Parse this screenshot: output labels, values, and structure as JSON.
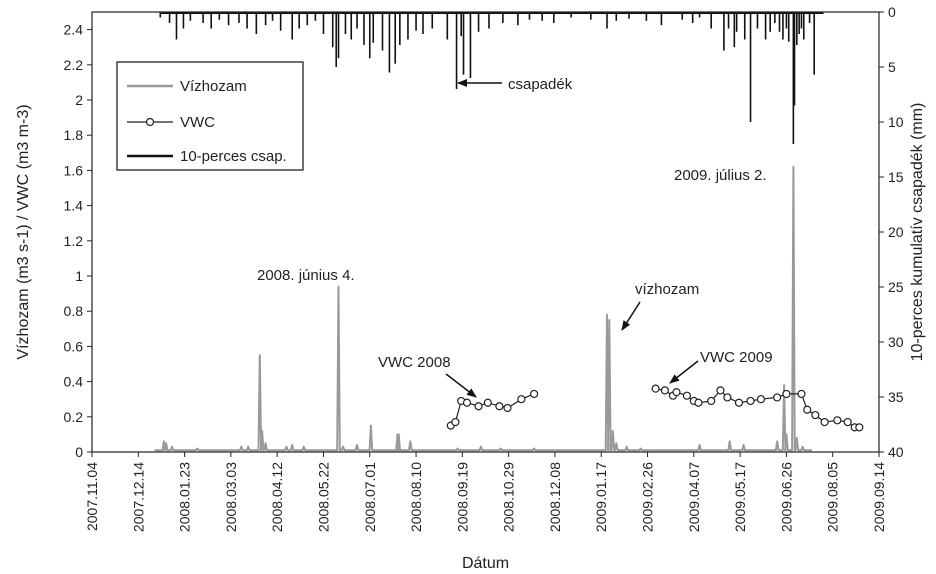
{
  "chart_data": {
    "type": "line",
    "xlabel": "Dátum",
    "ylabel_left": "Vízhozam (m3 s-1) / VWC (m3 m-3)",
    "ylabel_right": "10-perces kumulatív csapadék (mm)",
    "xlim": [
      "2007.11.04",
      "2009.09.14"
    ],
    "ylim_left": [
      0,
      2.5
    ],
    "ylim_right": [
      0,
      40
    ],
    "right_axis_inverted": true,
    "x_tick_labels": [
      "2007.11.04",
      "2007.12.14",
      "2008.01.23",
      "2008.03.03",
      "2008.04.12",
      "2008.05.22",
      "2008.07.01",
      "2008.08.10",
      "2008.09.19",
      "2008.10.29",
      "2008.12.08",
      "2009.01.17",
      "2009.02.26",
      "2009.04.07",
      "2009.05.17",
      "2009.06.26",
      "2009.08.05",
      "2009.09.14"
    ],
    "y_left_ticks": [
      "0",
      "0.2",
      "0.4",
      "0.6",
      "0.8",
      "1",
      "1.2",
      "1.4",
      "1.6",
      "1.8",
      "2",
      "2.2",
      "2.4"
    ],
    "y_right_ticks": [
      "0",
      "5",
      "10",
      "15",
      "20",
      "25",
      "30",
      "35",
      "40"
    ],
    "grid": false,
    "legend_position": "top-left",
    "legend": [
      {
        "label": "Vízhozam",
        "style": "line-gray"
      },
      {
        "label": "VWC",
        "style": "line-circle"
      },
      {
        "label": "10-perces csap.",
        "style": "line-black"
      }
    ],
    "series": [
      {
        "name": "Vízhozam",
        "color": "#999999",
        "axis": "left",
        "baseline": 0.01,
        "points": [
          [
            "2008.01.05",
            0.06
          ],
          [
            "2008.01.07",
            0.05
          ],
          [
            "2008.01.12",
            0.03
          ],
          [
            "2008.02.03",
            0.02
          ],
          [
            "2008.03.12",
            0.03
          ],
          [
            "2008.03.18",
            0.03
          ],
          [
            "2008.03.28",
            0.55
          ],
          [
            "2008.03.30",
            0.12
          ],
          [
            "2008.04.02",
            0.05
          ],
          [
            "2008.04.20",
            0.03
          ],
          [
            "2008.04.25",
            0.04
          ],
          [
            "2008.05.05",
            0.03
          ],
          [
            "2008.06.04",
            0.94
          ],
          [
            "2008.06.08",
            0.03
          ],
          [
            "2008.06.20",
            0.04
          ],
          [
            "2008.07.02",
            0.15
          ],
          [
            "2008.07.25",
            0.1
          ],
          [
            "2008.07.26",
            0.1
          ],
          [
            "2008.08.05",
            0.06
          ],
          [
            "2008.09.15",
            0.02
          ],
          [
            "2008.10.05",
            0.03
          ],
          [
            "2008.10.22",
            0.02
          ],
          [
            "2008.11.20",
            0.02
          ],
          [
            "2009.01.22",
            0.78
          ],
          [
            "2009.01.24",
            0.75
          ],
          [
            "2009.01.27",
            0.12
          ],
          [
            "2009.01.30",
            0.05
          ],
          [
            "2009.02.08",
            0.03
          ],
          [
            "2009.02.20",
            0.02
          ],
          [
            "2009.04.12",
            0.04
          ],
          [
            "2009.05.08",
            0.06
          ],
          [
            "2009.05.20",
            0.04
          ],
          [
            "2009.06.18",
            0.06
          ],
          [
            "2009.06.24",
            0.38
          ],
          [
            "2009.06.26",
            0.1
          ],
          [
            "2009.07.02",
            1.62
          ],
          [
            "2009.07.05",
            0.08
          ],
          [
            "2009.07.10",
            0.03
          ]
        ]
      },
      {
        "name": "VWC",
        "color": "#222222",
        "axis": "left",
        "marker": "circle",
        "segments": [
          [
            [
              "2008.09.09",
              0.15
            ],
            [
              "2008.09.13",
              0.17
            ],
            [
              "2008.09.18",
              0.29
            ],
            [
              "2008.09.23",
              0.28
            ],
            [
              "2008.10.03",
              0.26
            ],
            [
              "2008.10.11",
              0.28
            ],
            [
              "2008.10.21",
              0.26
            ],
            [
              "2008.10.28",
              0.25
            ],
            [
              "2008.11.09",
              0.3
            ],
            [
              "2008.11.20",
              0.33
            ]
          ],
          [
            [
              "2009.03.05",
              0.36
            ],
            [
              "2009.03.13",
              0.35
            ],
            [
              "2009.03.20",
              0.32
            ],
            [
              "2009.03.23",
              0.34
            ],
            [
              "2009.04.01",
              0.32
            ],
            [
              "2009.04.07",
              0.29
            ],
            [
              "2009.04.11",
              0.28
            ],
            [
              "2009.04.22",
              0.29
            ],
            [
              "2009.04.30",
              0.35
            ],
            [
              "2009.05.06",
              0.31
            ],
            [
              "2009.05.16",
              0.28
            ],
            [
              "2009.05.26",
              0.29
            ],
            [
              "2009.06.04",
              0.3
            ],
            [
              "2009.06.18",
              0.31
            ],
            [
              "2009.06.26",
              0.33
            ],
            [
              "2009.07.09",
              0.33
            ],
            [
              "2009.07.14",
              0.24
            ],
            [
              "2009.07.21",
              0.21
            ],
            [
              "2009.07.29",
              0.17
            ],
            [
              "2009.08.09",
              0.18
            ],
            [
              "2009.08.18",
              0.17
            ],
            [
              "2009.08.24",
              0.14
            ],
            [
              "2009.08.28",
              0.14
            ]
          ]
        ]
      },
      {
        "name": "10-perces csap.",
        "color": "#111111",
        "axis": "right",
        "bars": [
          [
            "2008.01.02",
            0.5
          ],
          [
            "2008.01.10",
            1
          ],
          [
            "2008.01.16",
            2.5
          ],
          [
            "2008.01.22",
            1.5
          ],
          [
            "2008.01.28",
            0.8
          ],
          [
            "2008.02.08",
            1
          ],
          [
            "2008.02.15",
            1.5
          ],
          [
            "2008.02.22",
            0.7
          ],
          [
            "2008.03.01",
            1.2
          ],
          [
            "2008.03.10",
            1
          ],
          [
            "2008.03.17",
            1.5
          ],
          [
            "2008.03.25",
            2
          ],
          [
            "2008.04.02",
            1.2
          ],
          [
            "2008.04.08",
            0.8
          ],
          [
            "2008.04.15",
            1.7
          ],
          [
            "2008.04.25",
            2.5
          ],
          [
            "2008.05.01",
            1.5
          ],
          [
            "2008.05.08",
            1.2
          ],
          [
            "2008.05.15",
            0.8
          ],
          [
            "2008.05.22",
            2
          ],
          [
            "2008.05.30",
            3.2
          ],
          [
            "2008.06.02",
            5
          ],
          [
            "2008.06.04",
            4.2
          ],
          [
            "2008.06.10",
            2
          ],
          [
            "2008.06.15",
            2.5
          ],
          [
            "2008.06.20",
            1.5
          ],
          [
            "2008.06.26",
            3
          ],
          [
            "2008.07.01",
            4.2
          ],
          [
            "2008.07.04",
            2.8
          ],
          [
            "2008.07.12",
            3.5
          ],
          [
            "2008.07.18",
            5.5
          ],
          [
            "2008.07.23",
            4.7
          ],
          [
            "2008.07.27",
            3
          ],
          [
            "2008.08.03",
            2.5
          ],
          [
            "2008.08.10",
            1.7
          ],
          [
            "2008.08.16",
            2
          ],
          [
            "2008.08.24",
            1.5
          ],
          [
            "2008.09.06",
            2.5
          ],
          [
            "2008.09.14",
            7
          ],
          [
            "2008.09.18",
            2.2
          ],
          [
            "2008.09.20",
            5.7
          ],
          [
            "2008.09.26",
            6
          ],
          [
            "2008.10.03",
            1.8
          ],
          [
            "2008.10.12",
            1.5
          ],
          [
            "2008.10.24",
            1
          ],
          [
            "2008.11.06",
            1.2
          ],
          [
            "2008.11.16",
            0.7
          ],
          [
            "2008.11.27",
            0.8
          ],
          [
            "2008.12.07",
            1
          ],
          [
            "2008.12.22",
            0.5
          ],
          [
            "2009.01.08",
            0.7
          ],
          [
            "2009.01.22",
            1.5
          ],
          [
            "2009.01.30",
            0.8
          ],
          [
            "2009.02.10",
            0.6
          ],
          [
            "2009.02.25",
            0.8
          ],
          [
            "2009.03.10",
            1.2
          ],
          [
            "2009.03.28",
            0.7
          ],
          [
            "2009.04.06",
            1
          ],
          [
            "2009.04.12",
            0.5
          ],
          [
            "2009.04.22",
            1.5
          ],
          [
            "2009.05.03",
            3.5
          ],
          [
            "2009.05.07",
            1.5
          ],
          [
            "2009.05.12",
            3.2
          ],
          [
            "2009.05.14",
            1.8
          ],
          [
            "2009.05.21",
            2.5
          ],
          [
            "2009.05.26",
            10
          ],
          [
            "2009.06.01",
            1.5
          ],
          [
            "2009.06.08",
            2.5
          ],
          [
            "2009.06.12",
            1.8
          ],
          [
            "2009.06.16",
            1
          ],
          [
            "2009.06.20",
            1.8
          ],
          [
            "2009.06.23",
            2.5
          ],
          [
            "2009.06.26",
            1.5
          ],
          [
            "2009.06.28",
            2.7
          ],
          [
            "2009.07.02",
            12
          ],
          [
            "2009.07.03",
            8.5
          ],
          [
            "2009.07.05",
            3
          ],
          [
            "2009.07.07",
            2
          ],
          [
            "2009.07.09",
            1.5
          ],
          [
            "2009.07.11",
            2.5
          ],
          [
            "2009.07.16",
            1
          ],
          [
            "2009.07.20",
            5.7
          ]
        ]
      }
    ],
    "annotations": [
      {
        "text": "csapadék",
        "arrow": true
      },
      {
        "text": "2008. június 4.",
        "arrow": false
      },
      {
        "text": "VWC 2008",
        "arrow": true
      },
      {
        "text": "vízhozam",
        "arrow": true
      },
      {
        "text": "VWC 2009",
        "arrow": true
      },
      {
        "text": "2009. július 2.",
        "arrow": false
      }
    ]
  }
}
